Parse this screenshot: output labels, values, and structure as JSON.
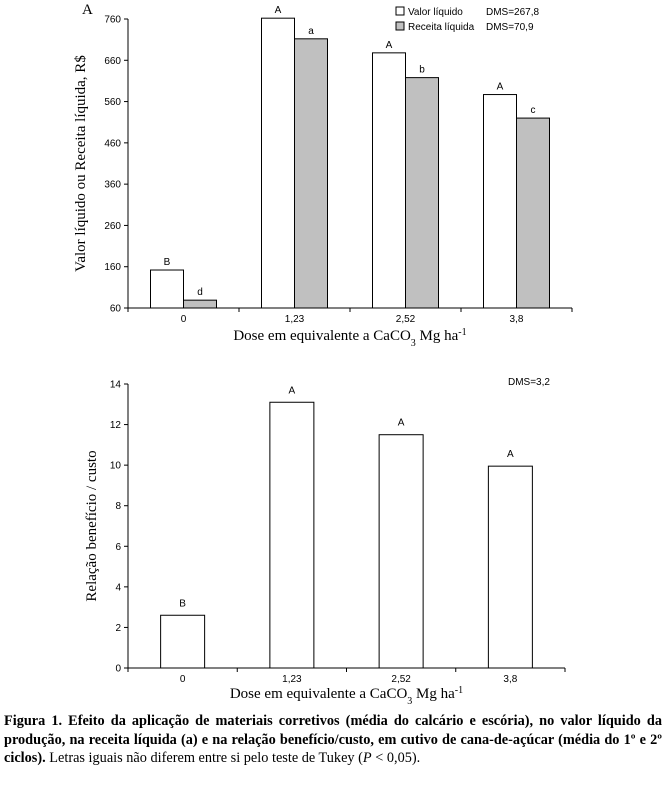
{
  "chart_data": [
    {
      "type": "bar",
      "panel_label": "A",
      "categories": [
        "0",
        "1,23",
        "2,52",
        "3,8"
      ],
      "series": [
        {
          "name": "Valor líquido",
          "values": [
            152,
            762,
            678,
            577
          ],
          "letters": [
            "B",
            "A",
            "A",
            "A"
          ],
          "color": "#ffffff"
        },
        {
          "name": "Receita líquida",
          "values": [
            79,
            712,
            618,
            520
          ],
          "letters": [
            "d",
            "a",
            "b",
            "c"
          ],
          "color": "#c0c0c0"
        }
      ],
      "legend_dms": [
        "DMS=267,8",
        "DMS=70,9"
      ],
      "ylabel": "Valor líquido ou Receita líquida, R$",
      "xlabel_prefix": "Dose em equivalente a CaCO",
      "xlabel_sub": "3",
      "xlabel_suffix": " Mg ha",
      "xlabel_sup": "-1",
      "yticks": [
        "60",
        "160",
        "260",
        "360",
        "460",
        "560",
        "660",
        "760"
      ],
      "ylim": [
        60,
        760
      ]
    },
    {
      "type": "bar",
      "categories": [
        "0",
        "1,23",
        "2,52",
        "3,8"
      ],
      "series": [
        {
          "name": "Relação benefício / custo",
          "values": [
            2.6,
            13.1,
            11.5,
            9.95
          ],
          "letters": [
            "B",
            "A",
            "A",
            "A"
          ],
          "color": "#ffffff"
        }
      ],
      "dms_text": "DMS=3,2",
      "ylabel": "Relação benefício / custo",
      "xlabel_prefix": "Dose em equivalente a CaCO",
      "xlabel_sub": "3",
      "xlabel_suffix": " Mg ha",
      "xlabel_sup": "-1",
      "yticks": [
        "0",
        "2",
        "4",
        "6",
        "8",
        "10",
        "12",
        "14"
      ],
      "ylim": [
        0,
        14
      ]
    }
  ],
  "caption": {
    "bold_part": "Figura 1. Efeito da aplicação de materiais corretivos (média do calcário e escória), no valor líquido da produção, na receita líquida (a) e na relação benefício/custo, em cutivo de cana-de-açúcar (média do 1º e 2º ciclos).",
    "normal_part": " Letras iguais não diferem entre si pelo teste de Tukey (",
    "italic_p": "P",
    "normal_end": " < 0,05)."
  }
}
